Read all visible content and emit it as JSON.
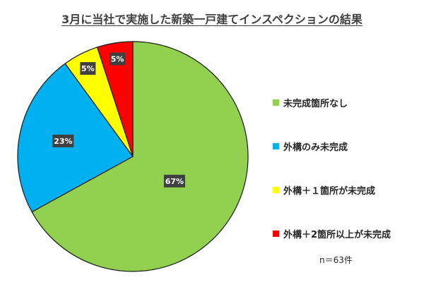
{
  "chart_data": {
    "type": "pie",
    "title": "3月に当社で実施した新築一戸建てインスペクションの結果",
    "categories": [
      "未完成箇所なし",
      "外構のみ未完成",
      "外構＋１箇所が未完成",
      "外構＋2箇所以上が未完成"
    ],
    "values": [
      67,
      23,
      5,
      5
    ],
    "data_labels": [
      "67%",
      "23%",
      "5%",
      "5%"
    ],
    "colors": [
      "#92D050",
      "#00B0F0",
      "#FFFF00",
      "#FF0000"
    ],
    "legend": [
      {
        "label": "未完成箇所なし",
        "color": "#92D050"
      },
      {
        "label": "外構のみ未完成",
        "color": "#00B0F0"
      },
      {
        "label": "外構＋１箇所が未完成",
        "color": "#FFFF00"
      },
      {
        "label": "外構＋2箇所以上が未完成",
        "color": "#FF0000"
      }
    ],
    "legend_position": "right",
    "start_angle": "12 o'clock",
    "direction": "counterclockwise for small slices, largest slice clockwise",
    "annotation": "n＝63件"
  }
}
